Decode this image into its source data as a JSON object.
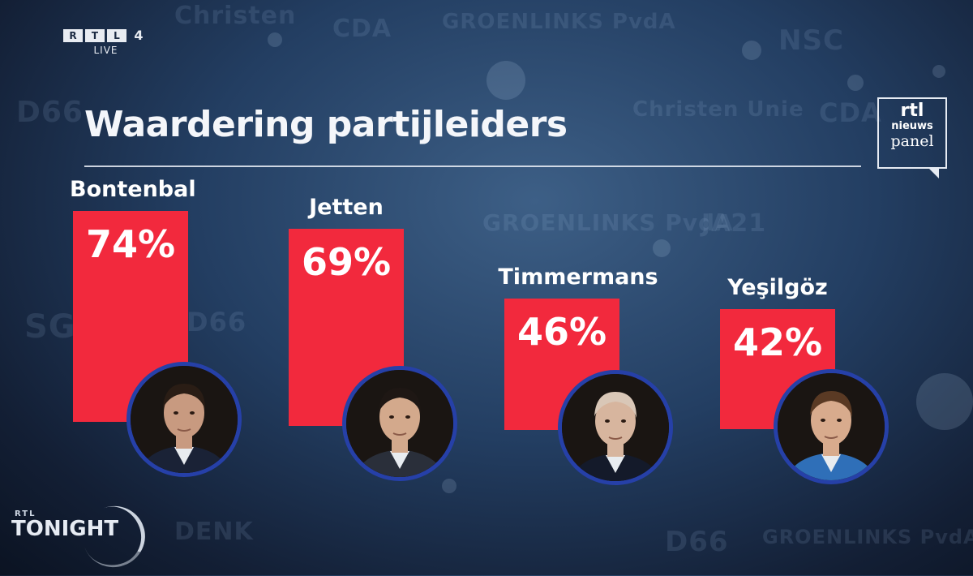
{
  "broadcaster": {
    "channel_letters": [
      "R",
      "T",
      "L"
    ],
    "channel_number": "4",
    "status": "LIVE"
  },
  "panel_logo": {
    "line1": "rtl",
    "line2": "nieuws",
    "line3": "panel"
  },
  "show_logo": {
    "brand": "RTL",
    "name": "TONIGHT"
  },
  "chart_data": {
    "type": "bar",
    "title": "Waardering partijleiders",
    "categories": [
      "Bontenbal",
      "Jetten",
      "Timmermans",
      "Yeşilgöz"
    ],
    "values": [
      74,
      69,
      46,
      42
    ],
    "value_labels": [
      "74%",
      "69%",
      "46%",
      "42%"
    ],
    "unit": "%",
    "bar_color": "#f2293d",
    "portraits": [
      "portrait-bontenbal",
      "portrait-jetten",
      "portrait-timmermans",
      "portrait-yesilgoz"
    ]
  }
}
